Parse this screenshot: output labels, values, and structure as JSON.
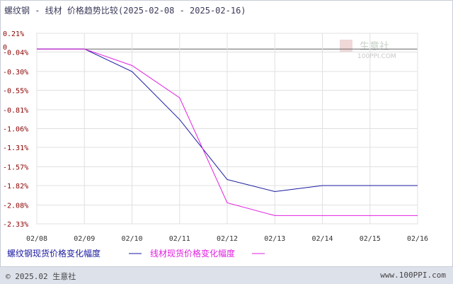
{
  "title": "螺纹钢 - 线材 价格趋势比较(2025-02-08 - 2025-02-16)",
  "watermark": {
    "brand": "生意社",
    "site": "100PPI.COM"
  },
  "footer": {
    "copyright": "© 2025.02 生意社",
    "site": "www.100PPI.com"
  },
  "colors": {
    "series1": "#1a1aa0",
    "series2": "#e020e0",
    "grid": "#d0d0d0",
    "tick": "#8a0000"
  },
  "chart_data": {
    "type": "line",
    "title": "螺纹钢 - 线材 价格趋势比较(2025-02-08 - 2025-02-16)",
    "xlabel": "",
    "ylabel": "",
    "x": [
      "02/08",
      "02/09",
      "02/10",
      "02/11",
      "02/12",
      "02/13",
      "02/14",
      "02/15",
      "02/16"
    ],
    "y_ticks": [
      "0.21%",
      "-0.04%",
      "-0.30%",
      "-0.55%",
      "-0.81%",
      "-1.06%",
      "-1.31%",
      "-1.57%",
      "-1.82%",
      "-2.08%",
      "-2.33%"
    ],
    "y_tick_values": [
      0.21,
      -0.04,
      -0.3,
      -0.55,
      -0.81,
      -1.06,
      -1.31,
      -1.57,
      -1.82,
      -2.08,
      -2.33
    ],
    "zero_label": "0",
    "ylim": [
      -2.33,
      0.21
    ],
    "grid": true,
    "legend_position": "bottom",
    "series": [
      {
        "name": "螺纹钢现货价格变化幅度",
        "values": [
          0.0,
          0.0,
          -0.3,
          -0.94,
          -1.74,
          -1.9,
          -1.82,
          -1.82,
          -1.82
        ]
      },
      {
        "name": "线材现货价格变化幅度",
        "values": [
          0.0,
          0.0,
          -0.22,
          -0.65,
          -2.05,
          -2.22,
          -2.22,
          -2.22,
          -2.22
        ]
      }
    ]
  }
}
